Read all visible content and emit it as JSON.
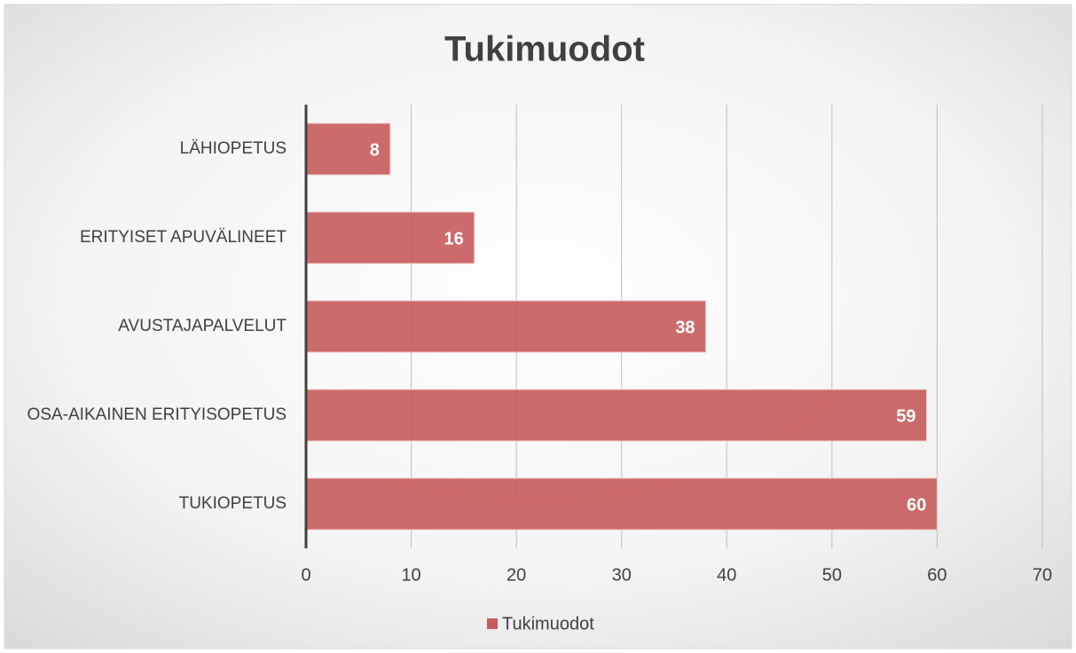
{
  "chart_data": {
    "type": "barh",
    "title": "Tukimuodot",
    "categories": [
      "LÄHIOPETUS",
      "ERITYISET APUVÄLINEET",
      "AVUSTAJAPALVELUT",
      "OSA-AIKAINEN ERITYISOPETUS",
      "TUKIOPETUS"
    ],
    "series": [
      {
        "name": "Tukimuodot",
        "color": "#c65b5b",
        "values": [
          8,
          16,
          38,
          59,
          60
        ]
      }
    ],
    "xlim": [
      0,
      70
    ],
    "xticks": [
      0,
      10,
      20,
      30,
      40,
      50,
      60,
      70
    ],
    "grid": true,
    "legend": "bottom"
  }
}
